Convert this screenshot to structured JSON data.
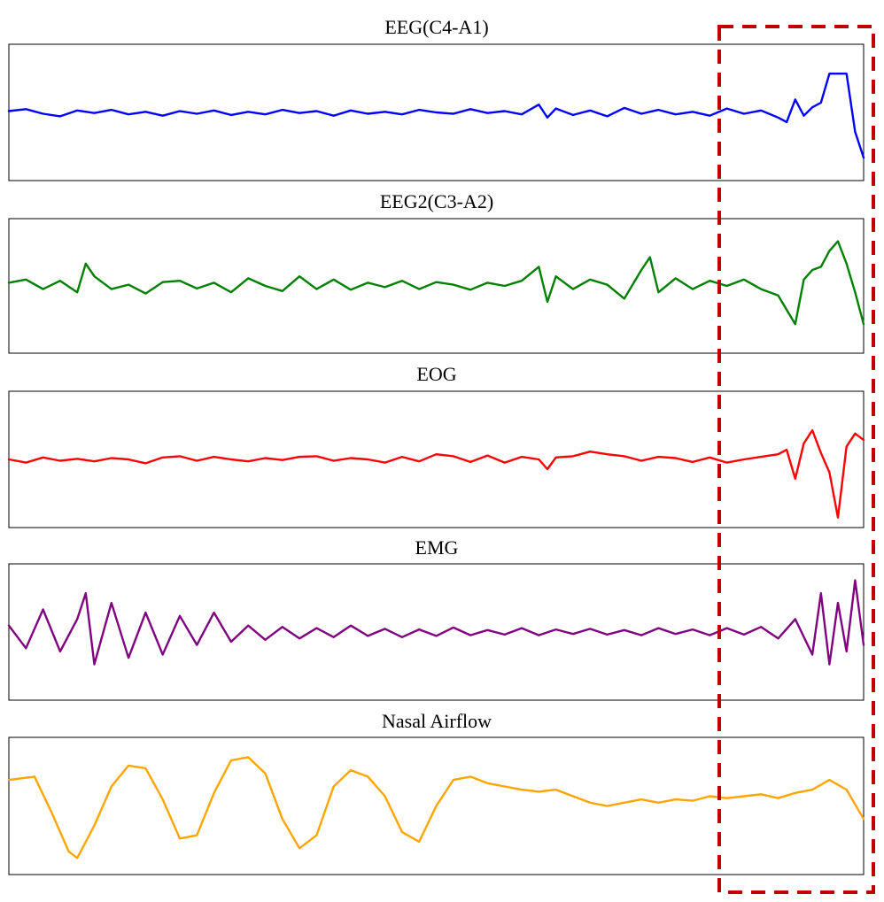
{
  "chart_data": [
    {
      "type": "line",
      "title": "EEG(C4-A1)",
      "color": "#0000ff",
      "x": [
        0,
        0.02,
        0.04,
        0.06,
        0.08,
        0.1,
        0.12,
        0.14,
        0.16,
        0.18,
        0.2,
        0.22,
        0.24,
        0.26,
        0.28,
        0.3,
        0.32,
        0.34,
        0.36,
        0.38,
        0.4,
        0.42,
        0.44,
        0.46,
        0.48,
        0.5,
        0.52,
        0.54,
        0.56,
        0.58,
        0.6,
        0.62,
        0.63,
        0.64,
        0.66,
        0.68,
        0.7,
        0.72,
        0.74,
        0.76,
        0.78,
        0.8,
        0.82,
        0.84,
        0.86,
        0.88,
        0.9,
        0.91,
        0.92,
        0.93,
        0.94,
        0.95,
        0.96,
        0.97,
        0.98,
        0.99,
        1.0
      ],
      "values": [
        0.02,
        0.05,
        -0.02,
        -0.06,
        0.03,
        -0.01,
        0.04,
        -0.03,
        0.01,
        -0.05,
        0.02,
        -0.02,
        0.03,
        -0.04,
        0.01,
        -0.03,
        0.04,
        -0.01,
        0.02,
        -0.05,
        0.03,
        -0.02,
        0.01,
        -0.03,
        0.04,
        0.0,
        -0.02,
        0.05,
        -0.01,
        0.02,
        -0.03,
        0.12,
        -0.08,
        0.06,
        -0.04,
        0.03,
        -0.06,
        0.07,
        -0.02,
        0.04,
        -0.03,
        0.01,
        -0.05,
        0.06,
        -0.02,
        0.03,
        -0.08,
        -0.15,
        0.2,
        -0.05,
        0.08,
        0.15,
        0.6,
        0.6,
        0.6,
        -0.3,
        -0.7
      ]
    },
    {
      "type": "line",
      "title": "EEG2(C3-A2)",
      "color": "#008000",
      "x": [
        0,
        0.02,
        0.04,
        0.06,
        0.08,
        0.09,
        0.1,
        0.12,
        0.14,
        0.16,
        0.18,
        0.2,
        0.22,
        0.24,
        0.26,
        0.28,
        0.3,
        0.32,
        0.34,
        0.36,
        0.38,
        0.4,
        0.42,
        0.44,
        0.46,
        0.48,
        0.5,
        0.52,
        0.54,
        0.56,
        0.58,
        0.6,
        0.62,
        0.63,
        0.64,
        0.66,
        0.68,
        0.7,
        0.72,
        0.74,
        0.75,
        0.76,
        0.78,
        0.8,
        0.82,
        0.84,
        0.86,
        0.88,
        0.9,
        0.92,
        0.93,
        0.94,
        0.95,
        0.96,
        0.97,
        0.98,
        0.99,
        1.0
      ],
      "values": [
        0.05,
        0.1,
        -0.05,
        0.08,
        -0.1,
        0.35,
        0.15,
        -0.05,
        0.02,
        -0.12,
        0.06,
        0.08,
        -0.04,
        0.05,
        -0.1,
        0.12,
        0.0,
        -0.08,
        0.15,
        -0.05,
        0.1,
        -0.06,
        0.05,
        -0.02,
        0.08,
        -0.05,
        0.06,
        0.02,
        -0.06,
        0.05,
        0.0,
        0.08,
        0.3,
        -0.25,
        0.15,
        -0.05,
        0.1,
        0.02,
        -0.2,
        0.25,
        0.45,
        -0.1,
        0.12,
        -0.05,
        0.08,
        0.0,
        0.1,
        -0.05,
        -0.15,
        -0.6,
        0.1,
        0.25,
        0.3,
        0.55,
        0.7,
        0.35,
        -0.1,
        -0.6
      ]
    },
    {
      "type": "line",
      "title": "EOG",
      "color": "#ff0000",
      "x": [
        0,
        0.02,
        0.04,
        0.06,
        0.08,
        0.1,
        0.12,
        0.14,
        0.16,
        0.18,
        0.2,
        0.22,
        0.24,
        0.26,
        0.28,
        0.3,
        0.32,
        0.34,
        0.36,
        0.38,
        0.4,
        0.42,
        0.44,
        0.46,
        0.48,
        0.5,
        0.52,
        0.54,
        0.56,
        0.58,
        0.6,
        0.62,
        0.63,
        0.64,
        0.66,
        0.68,
        0.7,
        0.72,
        0.74,
        0.76,
        0.78,
        0.8,
        0.82,
        0.84,
        0.86,
        0.88,
        0.9,
        0.91,
        0.92,
        0.93,
        0.94,
        0.95,
        0.96,
        0.97,
        0.98,
        0.99,
        1.0
      ],
      "values": [
        0.0,
        -0.05,
        0.03,
        -0.02,
        0.01,
        -0.03,
        0.02,
        0.0,
        -0.06,
        0.03,
        0.05,
        -0.02,
        0.04,
        0.0,
        -0.03,
        0.02,
        -0.01,
        0.04,
        0.05,
        -0.02,
        0.02,
        0.0,
        -0.05,
        0.04,
        -0.03,
        0.08,
        0.05,
        -0.04,
        0.06,
        -0.05,
        0.04,
        0.0,
        -0.15,
        0.03,
        0.05,
        0.12,
        0.08,
        0.05,
        -0.02,
        0.04,
        0.02,
        -0.04,
        0.03,
        -0.05,
        0.0,
        0.04,
        0.08,
        0.15,
        -0.3,
        0.25,
        0.45,
        0.1,
        -0.2,
        -0.9,
        0.2,
        0.4,
        0.3
      ]
    },
    {
      "type": "line",
      "title": "EMG",
      "color": "#800080",
      "x": [
        0,
        0.02,
        0.04,
        0.06,
        0.08,
        0.09,
        0.1,
        0.12,
        0.14,
        0.16,
        0.18,
        0.2,
        0.22,
        0.24,
        0.26,
        0.28,
        0.3,
        0.32,
        0.34,
        0.36,
        0.38,
        0.4,
        0.42,
        0.44,
        0.46,
        0.48,
        0.5,
        0.52,
        0.54,
        0.56,
        0.58,
        0.6,
        0.62,
        0.64,
        0.66,
        0.68,
        0.7,
        0.72,
        0.74,
        0.76,
        0.78,
        0.8,
        0.82,
        0.84,
        0.86,
        0.88,
        0.9,
        0.92,
        0.94,
        0.95,
        0.96,
        0.97,
        0.98,
        0.99,
        1.0
      ],
      "values": [
        0.1,
        -0.25,
        0.35,
        -0.3,
        0.2,
        0.6,
        -0.5,
        0.45,
        -0.4,
        0.3,
        -0.35,
        0.25,
        -0.2,
        0.3,
        -0.15,
        0.1,
        -0.12,
        0.08,
        -0.1,
        0.06,
        -0.08,
        0.1,
        -0.06,
        0.05,
        -0.08,
        0.04,
        -0.06,
        0.07,
        -0.05,
        0.03,
        -0.04,
        0.06,
        -0.05,
        0.04,
        -0.03,
        0.05,
        -0.04,
        0.03,
        -0.05,
        0.06,
        -0.03,
        0.04,
        -0.05,
        0.06,
        -0.04,
        0.08,
        -0.1,
        0.2,
        -0.35,
        0.6,
        -0.5,
        0.45,
        -0.3,
        0.8,
        -0.2
      ]
    },
    {
      "type": "line",
      "title": "Nasal Airflow",
      "color": "#ffa500",
      "x": [
        0,
        0.03,
        0.05,
        0.07,
        0.08,
        0.1,
        0.12,
        0.14,
        0.16,
        0.18,
        0.2,
        0.22,
        0.24,
        0.26,
        0.28,
        0.3,
        0.32,
        0.34,
        0.36,
        0.38,
        0.4,
        0.42,
        0.44,
        0.46,
        0.48,
        0.5,
        0.52,
        0.54,
        0.56,
        0.58,
        0.6,
        0.62,
        0.64,
        0.66,
        0.68,
        0.7,
        0.72,
        0.74,
        0.76,
        0.78,
        0.8,
        0.82,
        0.84,
        0.86,
        0.88,
        0.9,
        0.92,
        0.94,
        0.96,
        0.98,
        1.0
      ],
      "values": [
        0.4,
        0.45,
        -0.1,
        -0.7,
        -0.8,
        -0.3,
        0.3,
        0.62,
        0.58,
        0.1,
        -0.5,
        -0.45,
        0.2,
        0.7,
        0.75,
        0.5,
        -0.2,
        -0.65,
        -0.45,
        0.3,
        0.55,
        0.45,
        0.15,
        -0.4,
        -0.55,
        0.0,
        0.4,
        0.45,
        0.35,
        0.3,
        0.25,
        0.22,
        0.25,
        0.15,
        0.05,
        0.0,
        0.05,
        0.1,
        0.05,
        0.1,
        0.08,
        0.15,
        0.12,
        0.15,
        0.18,
        0.12,
        0.2,
        0.25,
        0.4,
        0.25,
        -0.2
      ]
    }
  ],
  "highlight": {
    "color": "#c00000"
  }
}
